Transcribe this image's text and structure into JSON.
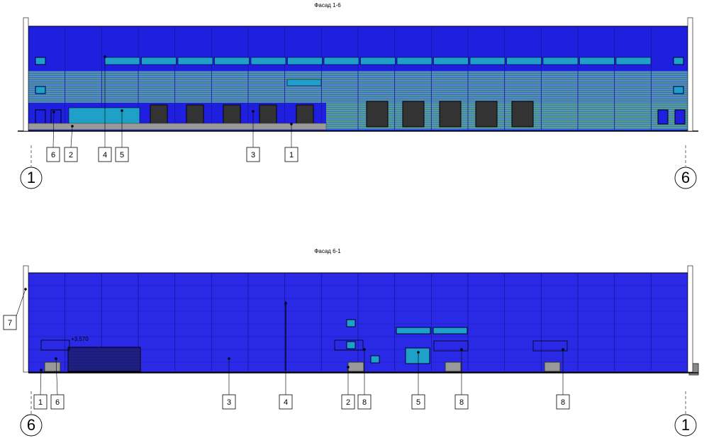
{
  "facades": [
    {
      "title": "Фасад 1-6",
      "axes": [
        "1",
        "6"
      ],
      "callouts": [
        "6",
        "2",
        "4",
        "5",
        "3",
        "1"
      ]
    },
    {
      "title": "Фасад 6-1",
      "axes": [
        "6",
        "1"
      ],
      "callouts": [
        "7",
        "1",
        "6",
        "3",
        "4",
        "2",
        "8",
        "5",
        "8",
        "8"
      ],
      "level": "+3,570"
    }
  ]
}
